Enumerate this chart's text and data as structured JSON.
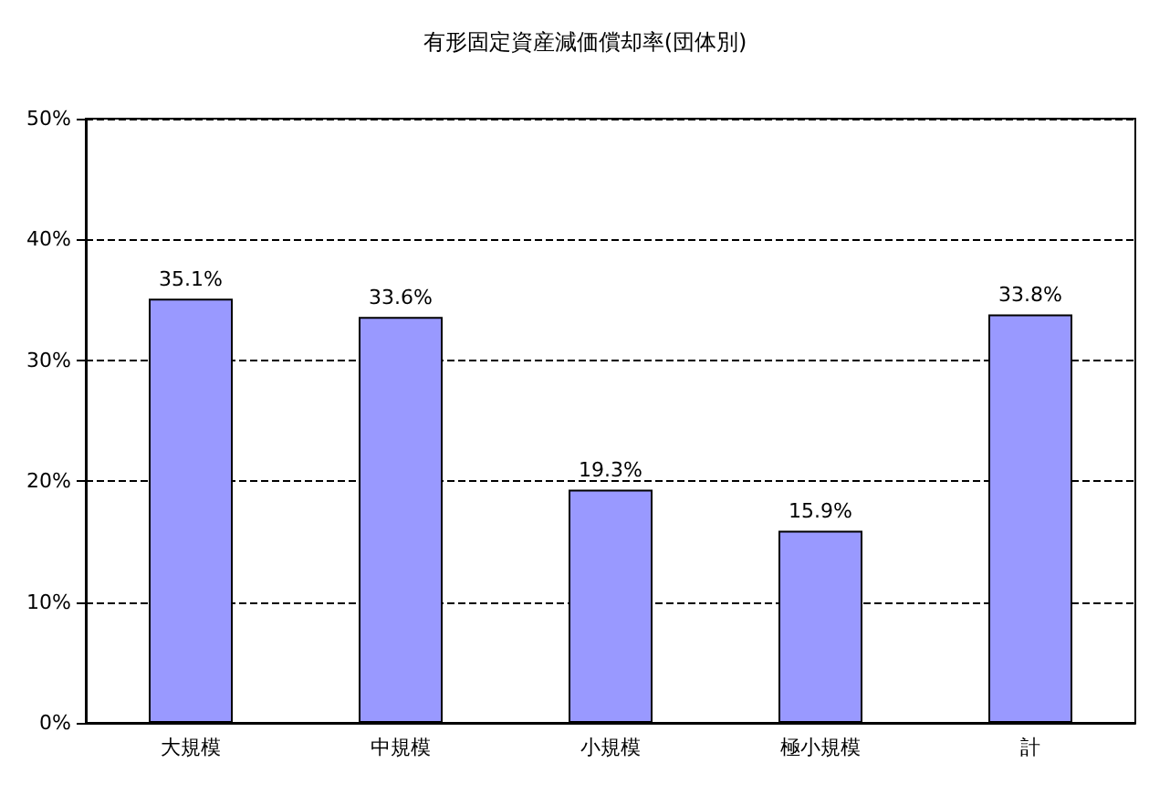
{
  "chart_data": {
    "type": "bar",
    "title": "有形固定資産減価償却率(団体別)",
    "categories": [
      "大規模",
      "中規模",
      "小規模",
      "極小規模",
      "計"
    ],
    "values": [
      35.1,
      33.6,
      19.3,
      15.9,
      33.8
    ],
    "value_labels": [
      "35.1%",
      "33.6%",
      "19.3%",
      "15.9%",
      "33.8%"
    ],
    "color": "#9999ff",
    "ylim": [
      0,
      50
    ],
    "yticks": [
      {
        "value": 0,
        "label": "0%"
      },
      {
        "value": 10,
        "label": "10%"
      },
      {
        "value": 20,
        "label": "20%"
      },
      {
        "value": 30,
        "label": "30%"
      },
      {
        "value": 40,
        "label": "40%"
      },
      {
        "value": 50,
        "label": "50%"
      }
    ],
    "grid": "y"
  }
}
